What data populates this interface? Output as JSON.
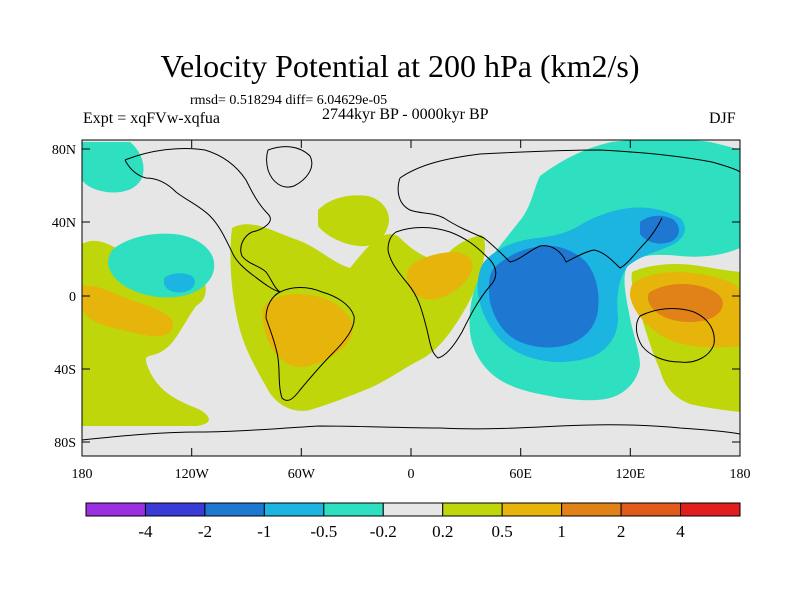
{
  "title": "Velocity Potential at 200 hPa (km2/s)",
  "stats": "rmsd= 0.518294 diff= 6.04629e-05",
  "experiment": "Expt = xqFVw-xqfua",
  "period": "2744kyr BP - 0000kyr BP",
  "season": "DJF",
  "map": {
    "background_color": "#e6e6e6",
    "lat_ticks": [
      "80N",
      "40N",
      "0",
      "40S",
      "80S"
    ],
    "lon_ticks": [
      "180",
      "120W",
      "60W",
      "0",
      "60E",
      "120E",
      "180"
    ]
  },
  "colorbar": {
    "colors": [
      "#9b30e0",
      "#3a3ad6",
      "#1e78d2",
      "#1cb4e0",
      "#2ee0c0",
      "#e6e6e6",
      "#bed60a",
      "#e6b40a",
      "#e08218",
      "#e05a1a",
      "#e01e1e"
    ],
    "labels": [
      "-4",
      "-2",
      "-1",
      "-0.5",
      "-0.2",
      "0.2",
      "0.5",
      "1",
      "2",
      "4"
    ]
  }
}
